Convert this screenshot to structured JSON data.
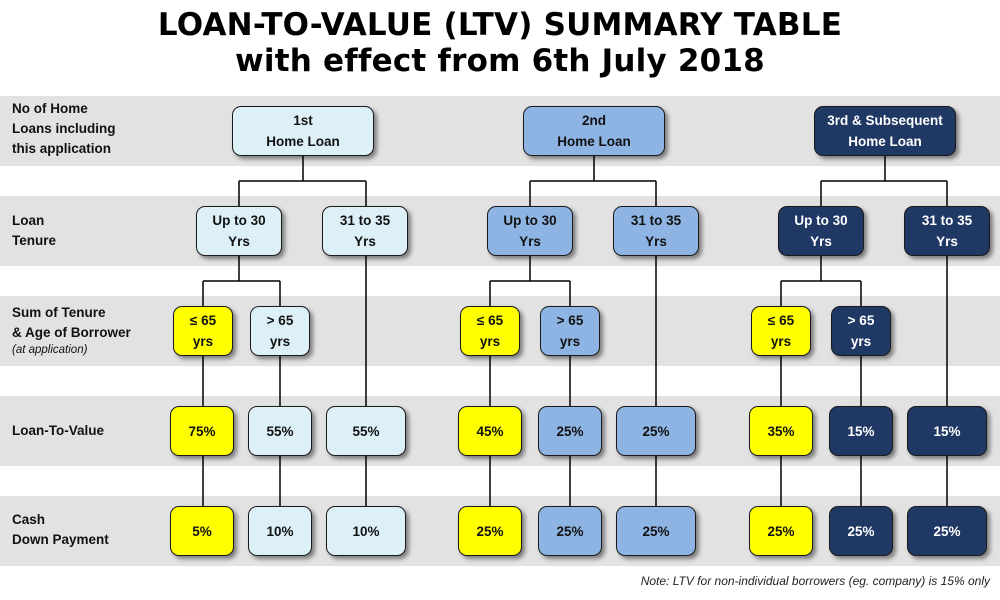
{
  "title": {
    "line1": "LOAN-TO-VALUE (LTV) SUMMARY TABLE",
    "line2": "with effect from 6th July 2018"
  },
  "row_labels": {
    "home_loans": [
      "No of Home",
      "Loans including",
      "this application"
    ],
    "tenure": [
      "Loan",
      "Tenure"
    ],
    "sum": [
      "Sum of Tenure",
      "& Age of Borrower"
    ],
    "sum_sub": "(at application)",
    "ltv": "Loan-To-Value",
    "cash": [
      "Cash",
      "Down Payment"
    ]
  },
  "groups": [
    {
      "theme": "light",
      "loan": [
        "1st",
        "Home Loan"
      ],
      "tenure_a": [
        "Up to 30",
        "Yrs"
      ],
      "tenure_b": [
        "31 to 35",
        "Yrs"
      ],
      "age_le": [
        "≤ 65",
        "yrs"
      ],
      "age_gt": [
        "> 65",
        "yrs"
      ],
      "ltv": [
        "75%",
        "55%",
        "55%"
      ],
      "cash": [
        "5%",
        "10%",
        "10%"
      ]
    },
    {
      "theme": "mid",
      "loan": [
        "2nd",
        "Home Loan"
      ],
      "tenure_a": [
        "Up to 30",
        "Yrs"
      ],
      "tenure_b": [
        "31 to 35",
        "Yrs"
      ],
      "age_le": [
        "≤ 65",
        "yrs"
      ],
      "age_gt": [
        "> 65",
        "yrs"
      ],
      "ltv": [
        "45%",
        "25%",
        "25%"
      ],
      "cash": [
        "25%",
        "25%",
        "25%"
      ]
    },
    {
      "theme": "dark",
      "loan": [
        "3rd & Subsequent",
        "Home Loan"
      ],
      "tenure_a": [
        "Up to 30",
        "Yrs"
      ],
      "tenure_b": [
        "31 to 35",
        "Yrs"
      ],
      "age_le": [
        "≤ 65",
        "yrs"
      ],
      "age_gt": [
        "> 65",
        "yrs"
      ],
      "ltv": [
        "35%",
        "15%",
        "15%"
      ],
      "cash": [
        "25%",
        "25%",
        "25%"
      ]
    }
  ],
  "note": "Note: LTV for non-individual borrowers (eg. company) is 15% only",
  "colors": {
    "light": "#ddf0f8",
    "mid": "#8eb4e3",
    "dark": "#1f3864",
    "yellow": "#ffff00",
    "band": "#e2e2e2"
  }
}
